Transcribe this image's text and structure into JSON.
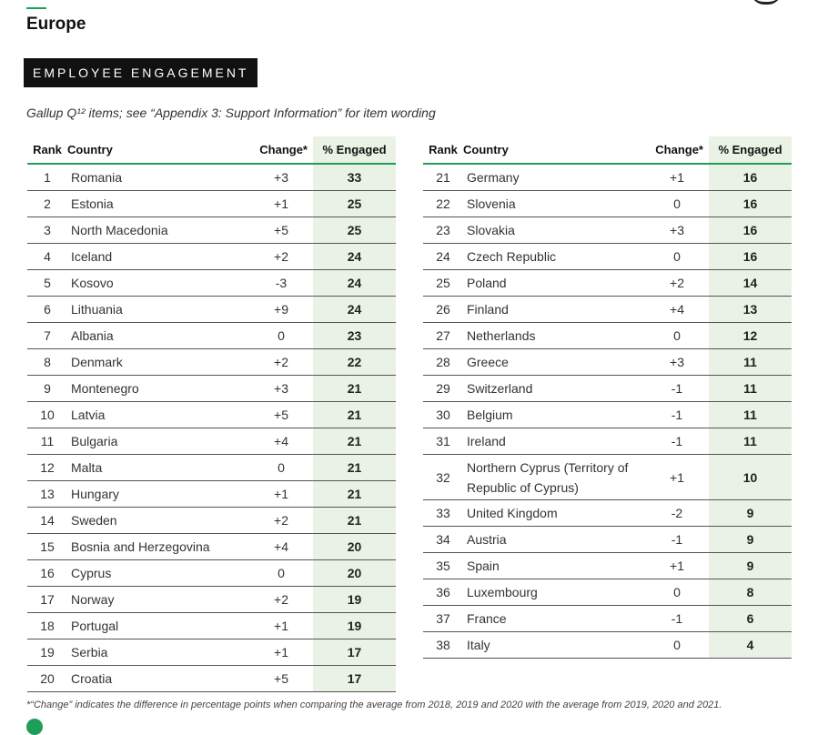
{
  "region": "Europe",
  "badge": "EMPLOYEE ENGAGEMENT",
  "subtitle": "Gallup Q¹² items; see “Appendix 3: Support Information” for item wording",
  "columns": {
    "rank": "Rank",
    "country": "Country",
    "change": "Change*",
    "engaged": "% Engaged"
  },
  "left_rows": [
    {
      "rank": "1",
      "country": "Romania",
      "change": "+3",
      "engaged": "33"
    },
    {
      "rank": "2",
      "country": "Estonia",
      "change": "+1",
      "engaged": "25"
    },
    {
      "rank": "3",
      "country": "North Macedonia",
      "change": "+5",
      "engaged": "25"
    },
    {
      "rank": "4",
      "country": "Iceland",
      "change": "+2",
      "engaged": "24"
    },
    {
      "rank": "5",
      "country": "Kosovo",
      "change": "-3",
      "engaged": "24"
    },
    {
      "rank": "6",
      "country": "Lithuania",
      "change": "+9",
      "engaged": "24"
    },
    {
      "rank": "7",
      "country": "Albania",
      "change": "0",
      "engaged": "23"
    },
    {
      "rank": "8",
      "country": "Denmark",
      "change": "+2",
      "engaged": "22"
    },
    {
      "rank": "9",
      "country": "Montenegro",
      "change": "+3",
      "engaged": "21"
    },
    {
      "rank": "10",
      "country": "Latvia",
      "change": "+5",
      "engaged": "21"
    },
    {
      "rank": "11",
      "country": "Bulgaria",
      "change": "+4",
      "engaged": "21"
    },
    {
      "rank": "12",
      "country": "Malta",
      "change": "0",
      "engaged": "21"
    },
    {
      "rank": "13",
      "country": "Hungary",
      "change": "+1",
      "engaged": "21"
    },
    {
      "rank": "14",
      "country": "Sweden",
      "change": "+2",
      "engaged": "21"
    },
    {
      "rank": "15",
      "country": "Bosnia and Herzegovina",
      "change": "+4",
      "engaged": "20"
    },
    {
      "rank": "16",
      "country": "Cyprus",
      "change": "0",
      "engaged": "20"
    },
    {
      "rank": "17",
      "country": "Norway",
      "change": "+2",
      "engaged": "19"
    },
    {
      "rank": "18",
      "country": "Portugal",
      "change": "+1",
      "engaged": "19"
    },
    {
      "rank": "19",
      "country": "Serbia",
      "change": "+1",
      "engaged": "17"
    },
    {
      "rank": "20",
      "country": "Croatia",
      "change": "+5",
      "engaged": "17"
    }
  ],
  "right_rows": [
    {
      "rank": "21",
      "country": "Germany",
      "change": "+1",
      "engaged": "16"
    },
    {
      "rank": "22",
      "country": "Slovenia",
      "change": "0",
      "engaged": "16"
    },
    {
      "rank": "23",
      "country": "Slovakia",
      "change": "+3",
      "engaged": "16"
    },
    {
      "rank": "24",
      "country": "Czech Republic",
      "change": "0",
      "engaged": "16"
    },
    {
      "rank": "25",
      "country": "Poland",
      "change": "+2",
      "engaged": "14"
    },
    {
      "rank": "26",
      "country": "Finland",
      "change": "+4",
      "engaged": "13"
    },
    {
      "rank": "27",
      "country": "Netherlands",
      "change": "0",
      "engaged": "12"
    },
    {
      "rank": "28",
      "country": "Greece",
      "change": "+3",
      "engaged": "11"
    },
    {
      "rank": "29",
      "country": "Switzerland",
      "change": "-1",
      "engaged": "11"
    },
    {
      "rank": "30",
      "country": "Belgium",
      "change": "-1",
      "engaged": "11"
    },
    {
      "rank": "31",
      "country": "Ireland",
      "change": "-1",
      "engaged": "11"
    },
    {
      "rank": "32",
      "country": "Northern Cyprus (Territory of Republic of Cyprus)",
      "change": "+1",
      "engaged": "10"
    },
    {
      "rank": "33",
      "country": "United Kingdom",
      "change": "-2",
      "engaged": "9"
    },
    {
      "rank": "34",
      "country": "Austria",
      "change": "-1",
      "engaged": "9"
    },
    {
      "rank": "35",
      "country": "Spain",
      "change": "+1",
      "engaged": "9"
    },
    {
      "rank": "36",
      "country": "Luxembourg",
      "change": "0",
      "engaged": "8"
    },
    {
      "rank": "37",
      "country": "France",
      "change": "-1",
      "engaged": "6"
    },
    {
      "rank": "38",
      "country": "Italy",
      "change": "0",
      "engaged": "4"
    }
  ],
  "footnote": "*“Change” indicates the difference in percentage points when comparing the average from 2018, 2019 and 2020 with the average from 2019, 2020 and 2021.",
  "colors": {
    "accent": "#1f9e5a",
    "engaged_bg": "#e9f2e4",
    "badge_bg": "#111111"
  }
}
